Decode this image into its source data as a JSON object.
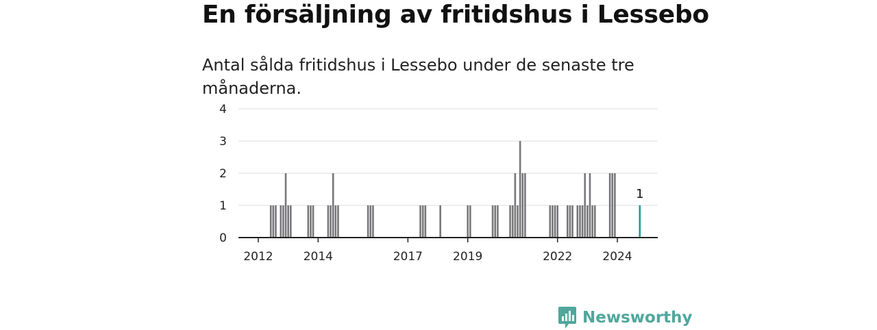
{
  "header": {
    "title": "En försäljning av fritidshus i Lessebo",
    "subtitle": "Antal sålda fritidshus i Lessebo under de senaste tre månaderna."
  },
  "brand": {
    "name": "Newsworthy",
    "icon": "newsworthy-logo-icon"
  },
  "colors": {
    "bar": "#77777a",
    "highlight": "#1a9e96",
    "grid": "#dddddd",
    "axis": "#222222",
    "brand": "#4fa79c"
  },
  "chart_data": {
    "type": "bar",
    "title": "En försäljning av fritidshus i Lessebo",
    "subtitle": "Antal sålda fritidshus i Lessebo under de senaste tre månaderna.",
    "xlabel": "",
    "ylabel": "",
    "ylim": [
      0,
      4
    ],
    "yticks": [
      0,
      1,
      2,
      3,
      4
    ],
    "xticks": [
      "2012",
      "2014",
      "2017",
      "2019",
      "2022",
      "2024"
    ],
    "grid": true,
    "highlight_label": "1",
    "series": [
      {
        "values": [
          [
            "2012-06",
            1
          ],
          [
            "2012-07",
            1
          ],
          [
            "2012-08",
            1
          ],
          [
            "2012-10",
            1
          ],
          [
            "2012-11",
            1
          ],
          [
            "2012-12",
            2
          ],
          [
            "2013-01",
            1
          ],
          [
            "2013-02",
            1
          ],
          [
            "2013-09",
            1
          ],
          [
            "2013-10",
            1
          ],
          [
            "2013-11",
            1
          ],
          [
            "2014-05",
            1
          ],
          [
            "2014-06",
            1
          ],
          [
            "2014-07",
            2
          ],
          [
            "2014-08",
            1
          ],
          [
            "2014-09",
            1
          ],
          [
            "2015-09",
            1
          ],
          [
            "2015-10",
            1
          ],
          [
            "2015-11",
            1
          ],
          [
            "2017-06",
            1
          ],
          [
            "2017-07",
            1
          ],
          [
            "2017-08",
            1
          ],
          [
            "2018-02",
            1
          ],
          [
            "2019-01",
            1
          ],
          [
            "2019-02",
            1
          ],
          [
            "2019-11",
            1
          ],
          [
            "2019-12",
            1
          ],
          [
            "2020-01",
            1
          ],
          [
            "2020-06",
            1
          ],
          [
            "2020-07",
            1
          ],
          [
            "2020-08",
            2
          ],
          [
            "2020-09",
            1
          ],
          [
            "2020-10",
            3
          ],
          [
            "2020-11",
            2
          ],
          [
            "2020-12",
            2
          ],
          [
            "2021-10",
            1
          ],
          [
            "2021-11",
            1
          ],
          [
            "2021-12",
            1
          ],
          [
            "2022-01",
            1
          ],
          [
            "2022-05",
            1
          ],
          [
            "2022-06",
            1
          ],
          [
            "2022-07",
            1
          ],
          [
            "2022-09",
            1
          ],
          [
            "2022-10",
            1
          ],
          [
            "2022-11",
            1
          ],
          [
            "2022-12",
            2
          ],
          [
            "2023-01",
            1
          ],
          [
            "2023-02",
            2
          ],
          [
            "2023-03",
            1
          ],
          [
            "2023-04",
            1
          ],
          [
            "2023-10",
            2
          ],
          [
            "2023-11",
            2
          ],
          [
            "2023-12",
            2
          ],
          [
            "2024-10",
            1
          ]
        ]
      }
    ]
  }
}
